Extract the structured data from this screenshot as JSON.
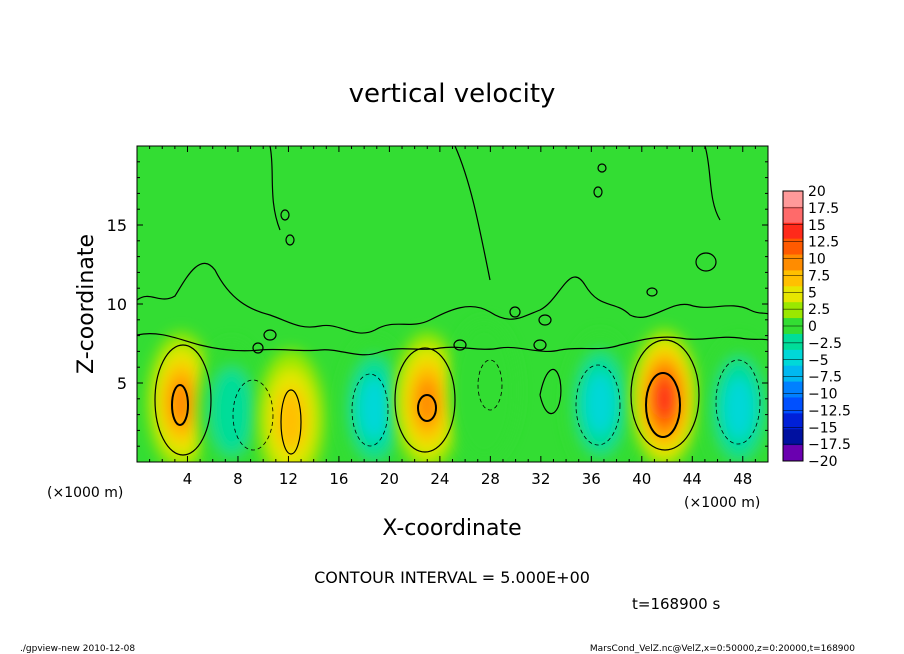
{
  "chart_data": {
    "type": "heatmap",
    "title": "vertical velocity",
    "xlabel": "X-coordinate",
    "ylabel": "Z-coordinate",
    "x_unit_left": "(×1000 m)",
    "x_unit_right": "(×1000 m)",
    "xlim": [
      0,
      50
    ],
    "ylim": [
      0,
      20
    ],
    "x_ticks": [
      4,
      8,
      12,
      16,
      20,
      24,
      28,
      32,
      36,
      40,
      44,
      48
    ],
    "x_tick_labels": [
      "4",
      "8",
      "12",
      "16",
      "20",
      "24",
      "28",
      "32",
      "36",
      "40",
      "44",
      "48"
    ],
    "y_ticks": [
      5,
      10,
      15
    ],
    "y_tick_labels": [
      "5",
      "10",
      "15"
    ],
    "colorbar": {
      "levels": [
        20,
        17.5,
        15,
        12.5,
        10,
        7.5,
        5,
        2.5,
        0,
        -2.5,
        -5,
        -7.5,
        -10,
        -12.5,
        -15,
        -17.5,
        -20
      ],
      "labels": [
        "20",
        "17.5",
        "15",
        "12.5",
        "10",
        "7.5",
        "5",
        "2.5",
        "0",
        "−2.5",
        "−5",
        "−7.5",
        "−10",
        "−12.5",
        "−15",
        "−17.5",
        "−20"
      ],
      "colors": [
        "#ff9a9a",
        "#ff6a6a",
        "#ff2a1a",
        "#ff5a00",
        "#ff8c00",
        "#ffc000",
        "#e6e600",
        "#9be800",
        "#33dd33",
        "#00dd99",
        "#00d8d8",
        "#00b8f0",
        "#0080ff",
        "#0050ff",
        "#0020d8",
        "#0010a0",
        "#6a00b0"
      ]
    },
    "cells": [
      {
        "x": 3.5,
        "z": 3.8,
        "value": 12
      },
      {
        "x": 7.5,
        "z": 3.2,
        "value": -6
      },
      {
        "x": 12.2,
        "z": 2.7,
        "value": 8
      },
      {
        "x": 18.8,
        "z": 3.4,
        "value": -7.5
      },
      {
        "x": 23.0,
        "z": 3.8,
        "value": 11
      },
      {
        "x": 27.5,
        "z": 4.5,
        "value": -3
      },
      {
        "x": 36.7,
        "z": 3.7,
        "value": -8
      },
      {
        "x": 41.8,
        "z": 4.0,
        "value": 16
      },
      {
        "x": 47.7,
        "z": 3.4,
        "value": -9
      }
    ],
    "annotations": {
      "contour_interval": "CONTOUR INTERVAL = 5.000E+00",
      "time": "t=168900 s"
    }
  },
  "footer": {
    "left": "./gpview-new  2010-12-08",
    "right": "MarsCond_VelZ.nc@VelZ,x=0:50000,z=0:20000,t=168900"
  }
}
